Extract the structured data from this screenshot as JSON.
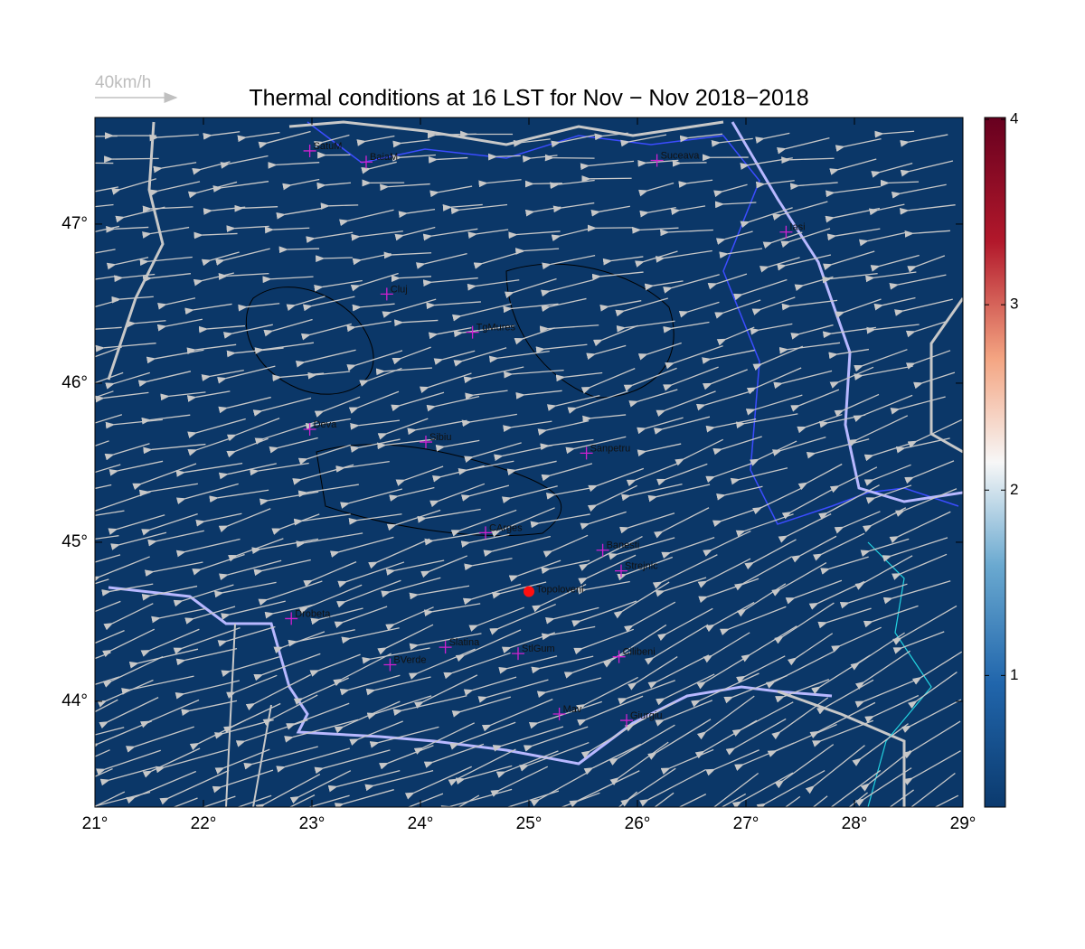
{
  "map": {
    "title": "Thermal conditions at 16 LST for Nov − Nov  2018−2018",
    "scale_label": "40km/h",
    "xlim": [
      21,
      29
    ],
    "ylim": [
      43.335,
      47.67
    ],
    "xticks": [
      {
        "value": 21,
        "label": "21°"
      },
      {
        "value": 22,
        "label": "22°"
      },
      {
        "value": 23,
        "label": "23°"
      },
      {
        "value": 24,
        "label": "24°"
      },
      {
        "value": 25,
        "label": "25°"
      },
      {
        "value": 26,
        "label": "26°"
      },
      {
        "value": 27,
        "label": "27°"
      },
      {
        "value": 28,
        "label": "28°"
      },
      {
        "value": 29,
        "label": "29°"
      }
    ],
    "yticks": [
      {
        "value": 44,
        "label": "44°"
      },
      {
        "value": 45,
        "label": "45°"
      },
      {
        "value": 46,
        "label": "46°"
      },
      {
        "value": 47,
        "label": "47°"
      }
    ],
    "colorbar": {
      "lim": [
        0.29,
        4.01
      ],
      "ticks": [
        1,
        2,
        3,
        4
      ]
    },
    "cities": [
      {
        "name": "SatuM",
        "lon": 22.98,
        "lat": 47.46
      },
      {
        "name": "BaiaM",
        "lon": 23.5,
        "lat": 47.39
      },
      {
        "name": "Suceava",
        "lon": 26.18,
        "lat": 47.4
      },
      {
        "name": "Iasi",
        "lon": 27.37,
        "lat": 46.95
      },
      {
        "name": "Cluj",
        "lon": 23.69,
        "lat": 46.56
      },
      {
        "name": "TgMures",
        "lon": 24.48,
        "lat": 46.32
      },
      {
        "name": "Deva",
        "lon": 22.98,
        "lat": 45.71
      },
      {
        "name": "Sibiu",
        "lon": 24.05,
        "lat": 45.63
      },
      {
        "name": "Sanpetru",
        "lon": 25.53,
        "lat": 45.56
      },
      {
        "name": "CArges",
        "lon": 24.6,
        "lat": 45.06
      },
      {
        "name": "Banesti",
        "lon": 25.68,
        "lat": 44.95
      },
      {
        "name": "Strejnic",
        "lon": 25.85,
        "lat": 44.82
      },
      {
        "name": "Drobeta",
        "lon": 22.81,
        "lat": 44.52
      },
      {
        "name": "Slatina",
        "lon": 24.23,
        "lat": 44.34
      },
      {
        "name": "StlGum",
        "lon": 24.9,
        "lat": 44.3
      },
      {
        "name": "Cilibeni",
        "lon": 25.83,
        "lat": 44.28
      },
      {
        "name": "BVerde",
        "lon": 23.72,
        "lat": 44.23
      },
      {
        "name": "Mav",
        "lon": 25.28,
        "lat": 43.92
      },
      {
        "name": "Giurgiu",
        "lon": 25.9,
        "lat": 43.88
      }
    ],
    "site": {
      "name": "Topoloveni",
      "lon": 25.0,
      "lat": 44.69
    }
  }
}
